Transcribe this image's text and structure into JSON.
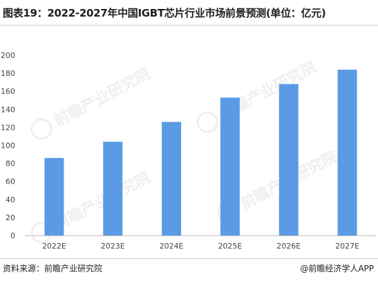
{
  "title": "图表19：2022-2027年中国IGBT芯片行业市场前景预测(单位：亿元)",
  "source": "资料来源：前瞻产业研究院",
  "credit": "@前瞻经济学人APP",
  "watermark": "前瞻产业研究院",
  "colors": {
    "bar": "#5b9be5",
    "axis": "#bfbfbf",
    "text": "#444444"
  },
  "chart_data": {
    "type": "bar",
    "categories": [
      "2022E",
      "2023E",
      "2024E",
      "2025E",
      "2026E",
      "2027E"
    ],
    "values": [
      86,
      104,
      126,
      153,
      168,
      184
    ],
    "yticks": [
      0,
      20,
      40,
      60,
      80,
      100,
      120,
      140,
      160,
      180,
      200
    ],
    "ylim": [
      0,
      200
    ],
    "grid": false,
    "legend": false
  }
}
